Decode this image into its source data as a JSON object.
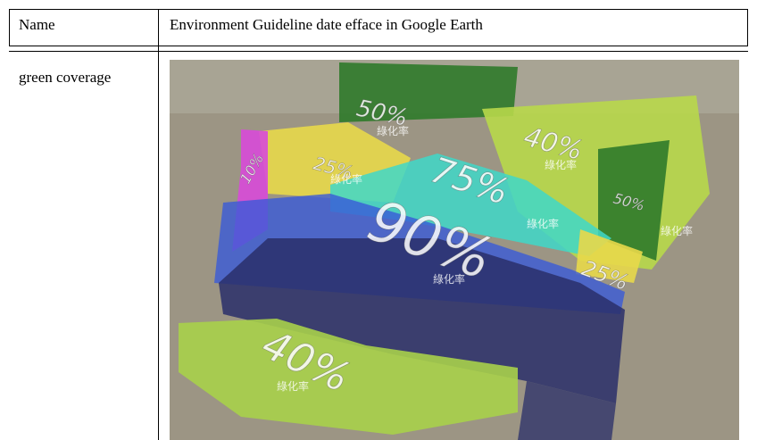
{
  "header": {
    "name": "Name",
    "title": "Environment Guideline date efface in Google Earth"
  },
  "row": {
    "label": "green coverage",
    "zones": [
      {
        "label": "50%",
        "note": "綠化率"
      },
      {
        "label": "40%",
        "note": "綠化率"
      },
      {
        "label": "25%",
        "note": "綠化率"
      },
      {
        "label": "10%"
      },
      {
        "label": "75%",
        "note": "綠化率"
      },
      {
        "label": "90%",
        "note": "綠化率"
      },
      {
        "label": "50%",
        "note": "綠化率"
      },
      {
        "label": "25%"
      },
      {
        "label": "40%",
        "note": "綠化率"
      }
    ]
  }
}
